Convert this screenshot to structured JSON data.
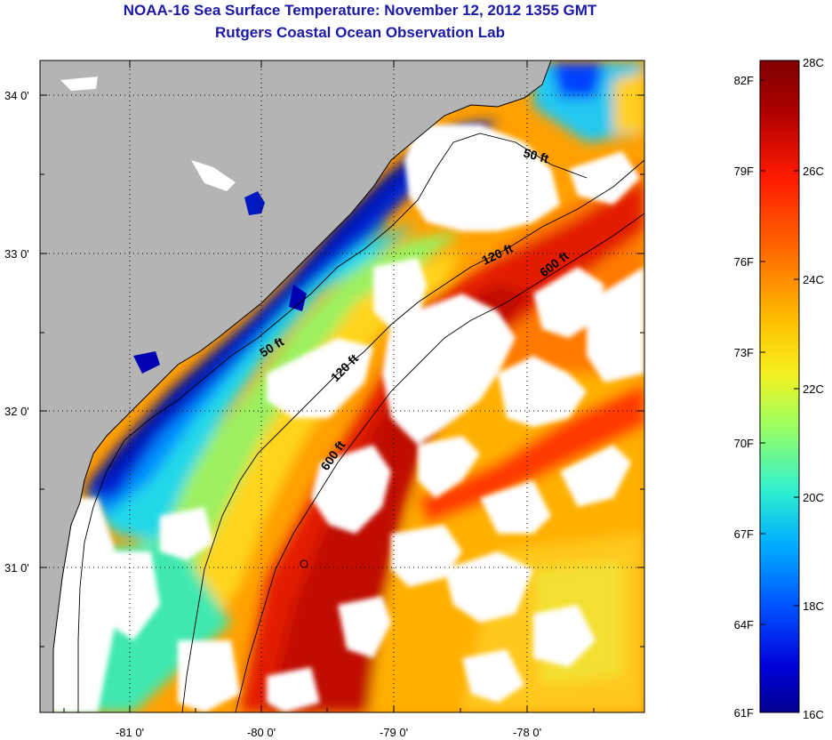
{
  "header": {
    "title": "NOAA-16 Sea Surface Temperature:  November 12, 2012 1355 GMT",
    "subtitle": "Rutgers Coastal Ocean Observation Lab"
  },
  "map": {
    "lat_labels": [
      "34 0'",
      "33 0'",
      "32 0'",
      "31 0'"
    ],
    "lon_labels": [
      "-81 0'",
      "-80 0'",
      "-79 0'",
      "-78 0'"
    ],
    "contour_labels": [
      "50 ft",
      "120 ft",
      "600 ft",
      "50 ft",
      "120 ft",
      "600 ft"
    ]
  },
  "colorbar": {
    "fahrenheit_labels": [
      "82F",
      "79F",
      "76F",
      "73F",
      "70F",
      "67F",
      "64F",
      "61F"
    ],
    "celsius_labels": [
      "28C",
      "26C",
      "24C",
      "22C",
      "20C",
      "18C",
      "16C"
    ],
    "colors": [
      "#7f0000",
      "#c00000",
      "#ff2000",
      "#ff7a00",
      "#ffc000",
      "#f0f020",
      "#90ff70",
      "#30f0d0",
      "#00b0ff",
      "#0050ff",
      "#0000d0",
      "#00008f"
    ]
  },
  "colors": {
    "land": "#b4b4b4",
    "cloud": "#ffffff",
    "title": "#1a1aa6"
  }
}
